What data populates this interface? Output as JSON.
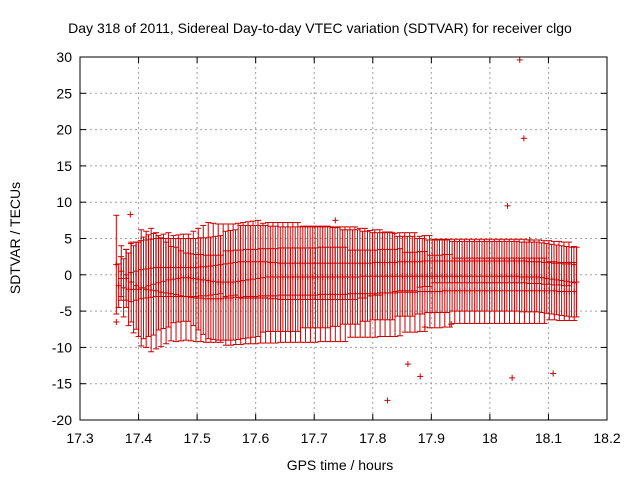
{
  "chart_data": {
    "type": "scatter",
    "title": "Day 318 of 2011, Sidereal Day-to-day VTEC variation (SDTVAR) for receiver clgo",
    "xlabel": "GPS time / hours",
    "ylabel": "SDTVAR / TECUs",
    "xlim": [
      17.3,
      18.2
    ],
    "ylim": [
      -20,
      30
    ],
    "xticks": [
      "17.3",
      "17.4",
      "17.5",
      "17.6",
      "17.7",
      "17.8",
      "17.9",
      "18",
      "18.1",
      "18.2"
    ],
    "yticks": [
      "-20",
      "-15",
      "-10",
      "-5",
      "0",
      "5",
      "10",
      "15",
      "20",
      "25",
      "30"
    ],
    "grid": true,
    "color": "#cc0000",
    "series": [
      {
        "name": "series-1",
        "x_start": 17.362,
        "x_step": 0.0085,
        "values": [
          1.4,
          0.5,
          -0.5,
          -1.0,
          -1.5,
          -1.8,
          -2.0,
          -2.1,
          -2.2,
          -2.4,
          -2.5,
          -2.6,
          -2.7,
          -2.9,
          -3.0,
          -3.1,
          -3.2,
          -3.2,
          -3.3,
          -3.3,
          -3.3,
          -3.3,
          -3.2,
          -3.2,
          -3.1,
          -3.1,
          -3.0,
          -3.0,
          -3.0,
          -2.9,
          -2.9,
          -2.9,
          -2.9,
          -2.8,
          -2.8,
          -2.8,
          -2.8,
          -2.8,
          -2.8,
          -2.8,
          -2.8,
          -2.7,
          -2.7,
          -2.7,
          -2.7,
          -2.7,
          -2.7,
          -2.6,
          -2.6,
          -2.6,
          -2.6,
          -2.6,
          -2.6,
          -2.5,
          -2.5,
          -2.5,
          -2.5,
          -2.4,
          -2.4,
          -2.4,
          -2.4,
          -2.3,
          -2.3,
          -2.3,
          -2.3,
          -2.3,
          -2.2,
          -2.2,
          -2.2,
          -2.2,
          -2.2,
          -2.2,
          -2.2,
          -2.2,
          -2.2,
          -2.2,
          -2.2,
          -2.2,
          -2.2,
          -2.2,
          -2.2,
          -2.2,
          -2.2,
          -2.2,
          -2.2,
          -2.2,
          -2.2,
          -2.2,
          -2.2,
          -2.3,
          -2.3,
          -2.3,
          -2.3
        ],
        "errors": [
          6.8,
          3.5,
          4.0,
          5.5,
          6.0,
          8.0,
          8.0,
          8.5,
          8.0,
          7.5,
          7.0,
          6.5,
          6.5,
          6.2,
          6.0,
          6.0,
          6.0,
          6.0,
          6.0,
          6.0,
          6.0,
          6.0,
          6.5,
          6.5,
          6.5,
          6.5,
          6.5,
          6.5,
          6.5,
          6.5,
          6.5,
          6.5,
          6.5,
          6.5,
          6.5,
          6.5,
          6.5,
          6.5,
          6.5,
          6.5,
          6.5,
          6.5,
          6.5,
          6.5,
          6.5,
          6.5,
          6.5,
          6.0,
          6.0,
          6.0,
          6.0,
          6.0,
          6.0,
          6.0,
          6.0,
          6.0,
          6.0,
          6.0,
          5.5,
          5.5,
          5.5,
          5.5,
          5.5,
          5.0,
          5.0,
          5.0,
          5.0,
          5.0,
          4.5,
          4.5,
          4.5,
          4.5,
          4.5,
          4.5,
          4.5,
          4.5,
          4.5,
          4.5,
          4.5,
          4.5,
          4.5,
          4.5,
          4.5,
          4.5,
          4.5,
          4.5,
          4.5,
          4.0,
          4.0,
          4.0,
          4.0,
          4.0,
          4.0
        ]
      },
      {
        "name": "series-2",
        "x_start": 17.366,
        "x_step": 0.0085,
        "values": [
          -1.5,
          -1.8,
          -2.0,
          -2.0,
          -2.0,
          -1.8,
          -1.5,
          -1.3,
          -1.1,
          -0.9,
          -0.7,
          -0.6,
          -0.5,
          -0.4,
          -0.4,
          -0.5,
          -0.6,
          -0.7,
          -0.8,
          -0.9,
          -1.0,
          -1.0,
          -1.0,
          -1.0,
          -0.9,
          -0.8,
          -0.7,
          -0.6,
          -0.5,
          -0.4,
          -0.3,
          -0.3,
          -0.3,
          -0.3,
          -0.3,
          -0.3,
          -0.3,
          -0.3,
          -0.3,
          -0.3,
          -0.3,
          -0.3,
          -0.3,
          -0.3,
          -0.3,
          -0.3,
          -0.3,
          -0.3,
          -0.3,
          -0.2,
          -0.2,
          -0.2,
          -0.2,
          -0.2,
          -0.2,
          -0.2,
          -0.2,
          -0.2,
          -0.2,
          -0.2,
          -0.2,
          -0.2,
          -0.2,
          -0.2,
          -0.2,
          -0.2,
          -0.2,
          -0.2,
          -0.2,
          -0.2,
          -0.2,
          -0.2,
          -0.2,
          -0.2,
          -0.2,
          -0.2,
          -0.2,
          -0.2,
          -0.2,
          -0.2,
          -0.2,
          -0.3,
          -0.3,
          -0.3,
          -0.3,
          -0.4,
          -0.5,
          -0.6,
          -0.7,
          -0.8,
          -0.9,
          -1.0,
          -1.0
        ],
        "errors": [
          3.0,
          4.0,
          5.0,
          6.0,
          6.5,
          7.0,
          7.0,
          7.0,
          6.5,
          6.5,
          6.5,
          6.0,
          6.0,
          6.0,
          6.0,
          6.5,
          7.0,
          7.5,
          8.0,
          8.0,
          8.0,
          8.0,
          8.0,
          8.0,
          8.0,
          8.0,
          8.0,
          8.0,
          8.0,
          7.5,
          7.5,
          7.5,
          7.5,
          7.5,
          7.5,
          7.5,
          7.5,
          7.0,
          7.0,
          7.0,
          7.0,
          7.0,
          7.0,
          6.8,
          6.8,
          6.5,
          6.5,
          6.5,
          6.5,
          6.2,
          6.2,
          6.0,
          6.0,
          6.0,
          6.0,
          6.0,
          5.5,
          5.5,
          5.5,
          5.5,
          5.2,
          5.2,
          5.0,
          5.0,
          5.0,
          5.0,
          5.0,
          4.8,
          4.8,
          4.8,
          4.8,
          4.8,
          4.8,
          4.8,
          4.8,
          4.8,
          4.8,
          4.8,
          4.8,
          4.8,
          4.8,
          4.8,
          4.8,
          4.8,
          4.8,
          4.8,
          4.8,
          4.8,
          4.8,
          4.8,
          4.8,
          4.8,
          4.8
        ]
      },
      {
        "name": "series-3",
        "x_start": 17.37,
        "x_step": 0.0085,
        "values": [
          -0.5,
          0.0,
          0.3,
          0.5,
          0.7,
          0.8,
          0.9,
          1.0,
          1.0,
          1.0,
          1.0,
          1.0,
          1.0,
          1.0,
          1.0,
          1.0,
          1.1,
          1.1,
          1.2,
          1.3,
          1.4,
          1.5,
          1.6,
          1.7,
          1.8,
          1.8,
          1.8,
          1.8,
          1.8,
          1.8,
          1.7,
          1.7,
          1.6,
          1.6,
          1.6,
          1.6,
          1.6,
          1.6,
          1.6,
          1.6,
          1.6,
          1.6,
          1.6,
          1.6,
          1.6,
          1.6,
          1.6,
          1.6,
          1.6,
          1.6,
          1.6,
          1.7,
          1.7,
          1.7,
          1.7,
          1.7,
          1.8,
          1.8,
          1.8,
          1.8,
          1.8,
          1.9,
          1.9,
          1.9,
          1.9,
          1.9,
          1.9,
          1.9,
          1.9,
          1.9,
          1.9,
          1.9,
          1.9,
          1.9,
          1.9,
          1.9,
          1.9,
          1.9,
          1.9,
          1.9,
          1.9,
          1.9,
          1.8,
          1.8,
          1.8,
          1.7,
          1.7,
          1.6,
          1.6,
          1.5,
          1.5,
          1.4,
          1.4
        ],
        "errors": [
          3.0,
          3.5,
          4.0,
          4.0,
          4.0,
          4.0,
          4.0,
          4.0,
          4.0,
          4.0,
          4.0,
          4.0,
          4.0,
          4.0,
          4.0,
          4.0,
          4.0,
          4.0,
          4.0,
          4.0,
          4.0,
          4.5,
          4.5,
          4.5,
          5.0,
          5.0,
          5.0,
          5.0,
          5.0,
          5.0,
          5.0,
          5.0,
          5.0,
          5.0,
          5.0,
          5.0,
          5.0,
          5.0,
          5.0,
          5.0,
          5.0,
          5.0,
          5.0,
          5.0,
          5.0,
          5.0,
          5.0,
          5.0,
          4.8,
          4.8,
          4.5,
          4.5,
          4.5,
          4.2,
          4.2,
          4.0,
          4.0,
          4.0,
          4.0,
          4.0,
          3.5,
          3.5,
          3.5,
          3.0,
          3.0,
          3.0,
          3.0,
          3.0,
          3.0,
          3.0,
          3.0,
          3.0,
          3.0,
          3.0,
          3.0,
          3.0,
          3.0,
          3.0,
          3.0,
          3.0,
          3.0,
          3.0,
          3.0,
          3.0,
          3.0,
          3.0,
          3.0,
          3.0,
          3.0,
          3.0,
          3.0,
          2.5,
          2.5
        ]
      }
    ],
    "outliers": [
      {
        "x": 17.386,
        "y": 8.3
      },
      {
        "x": 17.362,
        "y": -6.5
      },
      {
        "x": 17.736,
        "y": 7.5
      },
      {
        "x": 17.825,
        "y": -17.3
      },
      {
        "x": 17.86,
        "y": -12.3
      },
      {
        "x": 17.881,
        "y": -14.0
      },
      {
        "x": 17.889,
        "y": -7.2
      },
      {
        "x": 17.934,
        "y": -6.8
      },
      {
        "x": 18.03,
        "y": 9.5
      },
      {
        "x": 18.038,
        "y": -14.2
      },
      {
        "x": 18.051,
        "y": 29.6
      },
      {
        "x": 18.058,
        "y": 18.8
      },
      {
        "x": 18.068,
        "y": 4.8
      },
      {
        "x": 18.108,
        "y": -13.6
      }
    ]
  }
}
